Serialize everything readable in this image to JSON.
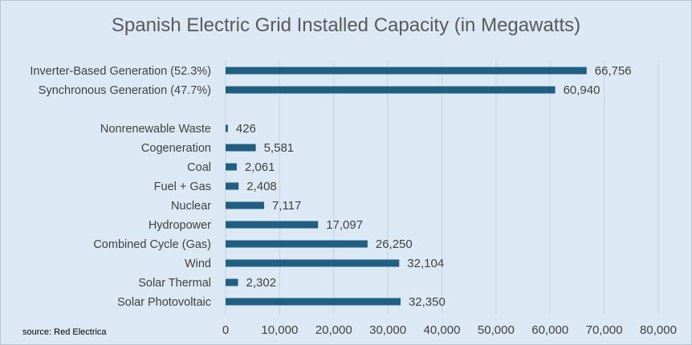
{
  "chart_data": {
    "type": "bar",
    "orientation": "horizontal",
    "title": "Spanish Electric Grid Installed Capacity (in Megawatts)",
    "xlabel": "",
    "ylabel": "",
    "xlim": [
      0,
      80000
    ],
    "x_ticks": [
      "0",
      "10,000",
      "20,000",
      "30,000",
      "40,000",
      "50,000",
      "60,000",
      "70,000",
      "80,000"
    ],
    "grid": "vertical",
    "bar_color": "#1f5f82",
    "categories": [
      "Inverter-Based Generation (52.3%)",
      "Synchronous Generation (47.7%)",
      "Nonrenewable Waste",
      "Cogeneration",
      "Coal",
      "Fuel + Gas",
      "Nuclear",
      "Hydropower",
      "Combined Cycle (Gas)",
      "Wind",
      "Solar Thermal",
      "Solar Photovoltaic"
    ],
    "values": [
      66756,
      60940,
      426,
      5581,
      2061,
      2408,
      7117,
      17097,
      26250,
      32104,
      2302,
      32350
    ],
    "data_labels": [
      "66,756",
      "60,940",
      "426",
      "5,581",
      "2,061",
      "2,408",
      "7,117",
      "17,097",
      "26,250",
      "32,104",
      "2,302",
      "32,350"
    ]
  },
  "source_note": "source: Red Electrica"
}
